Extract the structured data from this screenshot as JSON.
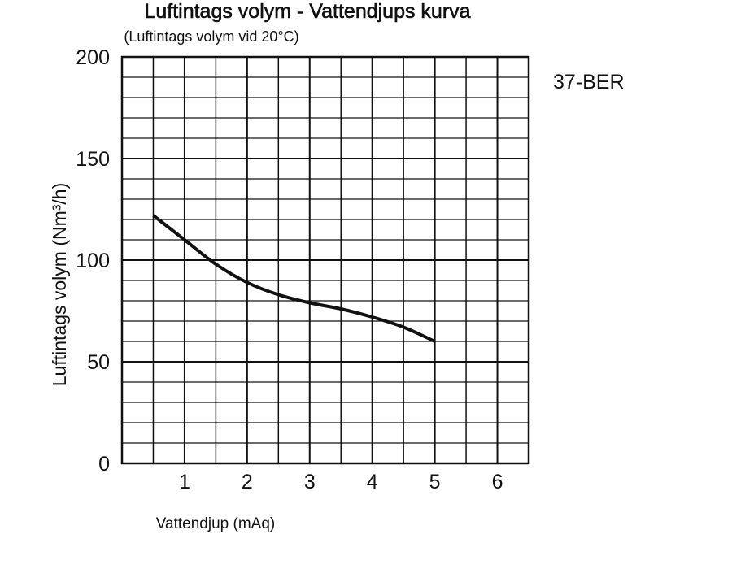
{
  "chart_data": {
    "type": "line",
    "title": "Luftintags volym - Vattendjups kurva",
    "subtitle": "(Luftintags volym vid 20°C)",
    "xlabel": "Vattendjup (mAq)",
    "ylabel": "Luftintags volym (Nm³/h)",
    "model_label": "37-BER",
    "xlim": [
      0,
      6.5
    ],
    "ylim": [
      0,
      200
    ],
    "x_ticks": [
      1,
      2,
      3,
      4,
      5,
      6
    ],
    "y_ticks": [
      0,
      50,
      100,
      150,
      200
    ],
    "grid": true,
    "series": [
      {
        "x": [
          0.5,
          1.0,
          1.5,
          2.0,
          2.5,
          3.0,
          3.5,
          4.0,
          4.5,
          5.0
        ],
        "y": [
          122,
          110,
          98,
          89,
          83,
          79,
          76,
          72,
          67,
          60
        ]
      }
    ],
    "colors": {
      "line": "#111111",
      "grid": "#111111"
    }
  }
}
